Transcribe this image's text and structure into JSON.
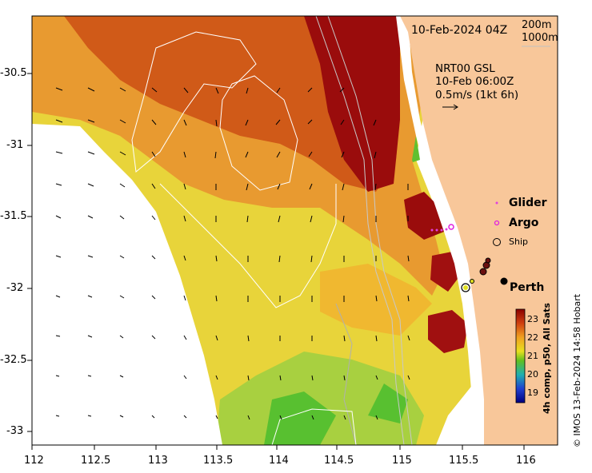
{
  "title": "10-Feb-2024 04Z",
  "depth_labels": [
    "200m",
    "1000m"
  ],
  "current_info": {
    "source": "NRT00 GSL",
    "time": "10-Feb 06:00Z",
    "scale": "0.5m/s (1kt 6h)"
  },
  "legend": {
    "glider": "Glider",
    "argo": "Argo",
    "ship": "Ship"
  },
  "place": "Perth",
  "colorbar": {
    "ticks": [
      "23",
      "22",
      "21",
      "20",
      "19"
    ],
    "label": "4h comp, p50, All Sats"
  },
  "credit": "© IMOS 13-Feb-2024 14:58 Hobart",
  "axes": {
    "x_ticks": [
      "112",
      "112.5",
      "113",
      "113.5",
      "114",
      "114.5",
      "115",
      "115.5",
      "116"
    ],
    "y_ticks": [
      "-30.5",
      "-31",
      "-31.5",
      "-32",
      "-32.5",
      "-33"
    ],
    "xlim": [
      112,
      116.3
    ],
    "ylim": [
      -33.1,
      -30.1
    ]
  },
  "colors": {
    "land": "#f8c79a",
    "no_data": "#ffffff",
    "glider": "#e040e0",
    "argo": "#e020e0"
  }
}
